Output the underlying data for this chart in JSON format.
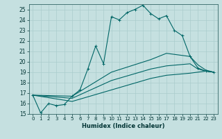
{
  "xlabel": "Humidex (Indice chaleur)",
  "ylabel": "",
  "xlim": [
    -0.5,
    23.5
  ],
  "ylim": [
    15,
    25.5
  ],
  "xticks": [
    0,
    1,
    2,
    3,
    4,
    5,
    6,
    7,
    8,
    9,
    10,
    11,
    12,
    13,
    14,
    15,
    16,
    17,
    18,
    19,
    20,
    21,
    22,
    23
  ],
  "yticks": [
    15,
    16,
    17,
    18,
    19,
    20,
    21,
    22,
    23,
    24,
    25
  ],
  "bg_color": "#c5e0e0",
  "grid_color": "#aacccc",
  "line_color": "#006666",
  "line1_x": [
    0,
    1,
    2,
    3,
    4,
    5,
    6,
    7,
    8,
    9,
    10,
    11,
    12,
    13,
    14,
    15,
    16,
    17,
    18,
    19,
    20,
    21,
    22,
    23
  ],
  "line1_y": [
    16.8,
    15.1,
    16.0,
    15.8,
    15.9,
    16.7,
    17.3,
    19.3,
    21.5,
    19.8,
    24.3,
    24.0,
    24.7,
    25.0,
    25.4,
    24.6,
    24.1,
    24.4,
    23.0,
    22.5,
    20.5,
    19.4,
    19.1,
    19.0
  ],
  "line2_x": [
    0,
    5,
    10,
    15,
    17,
    20,
    21,
    22,
    23
  ],
  "line2_y": [
    16.8,
    16.7,
    19.0,
    20.2,
    20.8,
    20.5,
    19.7,
    19.2,
    19.0
  ],
  "line3_x": [
    0,
    5,
    10,
    15,
    17,
    20,
    21,
    22,
    23
  ],
  "line3_y": [
    16.8,
    16.5,
    18.2,
    19.3,
    19.6,
    19.8,
    19.3,
    19.1,
    19.0
  ],
  "line4_x": [
    0,
    5,
    10,
    15,
    17,
    20,
    21,
    22,
    23
  ],
  "line4_y": [
    16.8,
    16.2,
    17.3,
    18.4,
    18.7,
    18.9,
    19.0,
    19.1,
    19.0
  ]
}
